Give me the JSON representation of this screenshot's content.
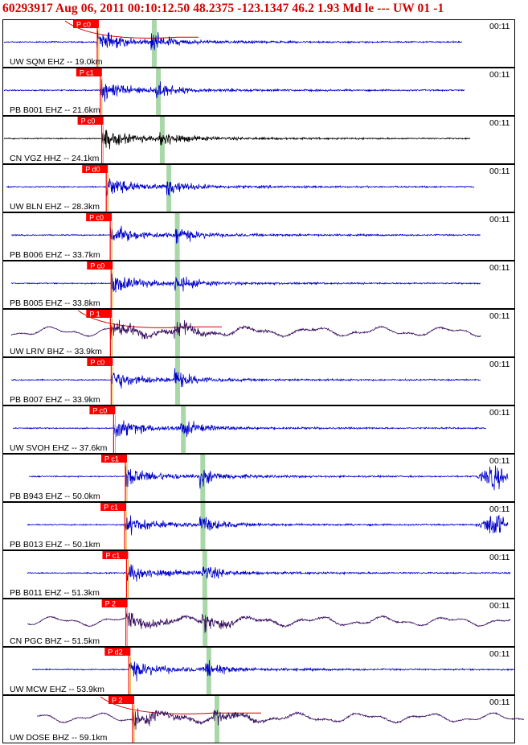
{
  "header": {
    "title": "60293917 Aug 06, 2011 00:10:12.50    48.2375 -123.1347 46.2 1.93 Md le --- UW 01  -1"
  },
  "colors": {
    "header_text": "#d40000",
    "pick_flag": "#ff0000",
    "pick_line": "#ff0000",
    "s_marker": "#9fd49f",
    "theoretical_curve": "#d40000",
    "panel_border": "#000000"
  },
  "time_label": "00:11",
  "chart_data": {
    "type": "seismogram-record-section",
    "title": "60293917 Aug 06, 2011 00:10:12.50    48.2375 -123.1347 46.2 1.93 Md le --- UW 01  -1",
    "grid": false,
    "units": {
      "distance": "km"
    },
    "traces": [
      {
        "label": "UW SQM EHZ -- 19.0km",
        "network": "UW",
        "station": "SQM",
        "channel": "EHZ",
        "distance_km": 19.0,
        "pick": "P c0",
        "time": "00:11",
        "color": "#0000cc"
      },
      {
        "label": "PB B001 EHZ -- 21.6km",
        "network": "PB",
        "station": "B001",
        "channel": "EHZ",
        "distance_km": 21.6,
        "pick": "P c1",
        "time": "00:11",
        "color": "#0000cc"
      },
      {
        "label": "CN VGZ HHZ -- 24.1km",
        "network": "CN",
        "station": "VGZ",
        "channel": "HHZ",
        "distance_km": 24.1,
        "pick": "P c0",
        "time": "00:11",
        "color": "#000000"
      },
      {
        "label": "UW BLN EHZ -- 28.3km",
        "network": "UW",
        "station": "BLN",
        "channel": "EHZ",
        "distance_km": 28.3,
        "pick": "P d0",
        "time": "00:11",
        "color": "#0000cc"
      },
      {
        "label": "PB B006 EHZ -- 33.7km",
        "network": "PB",
        "station": "B006",
        "channel": "EHZ",
        "distance_km": 33.7,
        "pick": "P c0",
        "time": "00:11",
        "color": "#0000cc"
      },
      {
        "label": "PB B005 EHZ -- 33.8km",
        "network": "PB",
        "station": "B005",
        "channel": "EHZ",
        "distance_km": 33.8,
        "pick": "P c0",
        "time": "00:11",
        "color": "#0000cc"
      },
      {
        "label": "UW LRIV BHZ -- 33.9km",
        "network": "UW",
        "station": "LRIV",
        "channel": "BHZ",
        "distance_km": 33.9,
        "pick": "P 1",
        "time": "00:11",
        "color": "#3a1060"
      },
      {
        "label": "PB B007 EHZ -- 33.9km",
        "network": "PB",
        "station": "B007",
        "channel": "EHZ",
        "distance_km": 33.9,
        "pick": "P c0",
        "time": "00:11",
        "color": "#0000cc"
      },
      {
        "label": "UW SVOH EHZ -- 37.6km",
        "network": "UW",
        "station": "SVOH",
        "channel": "EHZ",
        "distance_km": 37.6,
        "pick": "P c0",
        "time": "00:11",
        "color": "#0000cc"
      },
      {
        "label": "PB B943 EHZ -- 50.0km",
        "network": "PB",
        "station": "B943",
        "channel": "EHZ",
        "distance_km": 50.0,
        "pick": "P c1",
        "time": "00:11",
        "color": "#0000cc"
      },
      {
        "label": "PB B013 EHZ -- 50.1km",
        "network": "PB",
        "station": "B013",
        "channel": "EHZ",
        "distance_km": 50.1,
        "pick": "P c1",
        "time": "00:11",
        "color": "#0000cc"
      },
      {
        "label": "PB B011 EHZ -- 51.3km",
        "network": "PB",
        "station": "B011",
        "channel": "EHZ",
        "distance_km": 51.3,
        "pick": "P c1",
        "time": "00:11",
        "color": "#0000cc"
      },
      {
        "label": "CN PGC BHZ -- 51.5km",
        "network": "CN",
        "station": "PGC",
        "channel": "BHZ",
        "distance_km": 51.5,
        "pick": "P 2",
        "time": "00:11",
        "color": "#3a1060"
      },
      {
        "label": "UW MCW EHZ -- 53.9km",
        "network": "UW",
        "station": "MCW",
        "channel": "EHZ",
        "distance_km": 53.9,
        "pick": "P d2",
        "time": "00:11",
        "color": "#0000cc"
      },
      {
        "label": "UW DOSE BHZ -- 59.1km",
        "network": "UW",
        "station": "DOSE",
        "channel": "BHZ",
        "distance_km": 59.1,
        "pick": "P 2",
        "time": "00:11",
        "color": "#3a1060"
      }
    ]
  }
}
